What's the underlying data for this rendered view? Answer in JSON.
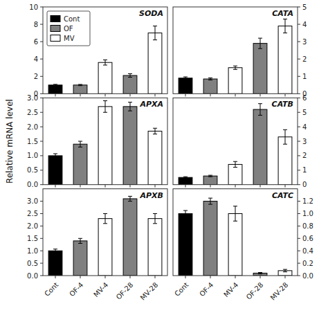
{
  "chart_data": [
    {
      "type": "bar",
      "title": "SODA",
      "y_label": "Relative mRNA level",
      "categories": [
        "Cont",
        "OF-4",
        "MV-4",
        "OF-28",
        "MV-28"
      ],
      "series": [
        {
          "name": "Cont",
          "color": "#000000",
          "values": [
            1.0,
            null,
            null,
            null,
            null
          ],
          "errors": [
            0.08,
            null,
            null,
            null,
            null
          ]
        },
        {
          "name": "OF",
          "color": "#808080",
          "values": [
            null,
            1.0,
            null,
            2.1,
            null
          ],
          "errors": [
            null,
            0.07,
            null,
            0.2,
            null
          ]
        },
        {
          "name": "MV",
          "color": "#ffffff",
          "values": [
            null,
            null,
            3.6,
            null,
            7.0
          ],
          "errors": [
            null,
            null,
            0.3,
            null,
            0.8
          ]
        }
      ],
      "ylim": [
        0,
        10
      ],
      "yticks": [
        0,
        2,
        4,
        6,
        8,
        10
      ],
      "grid": false,
      "legend": "upper left",
      "tick_labels": "y"
    },
    {
      "type": "bar",
      "title": "CATA",
      "categories": [
        "Cont",
        "OF-4",
        "MV-4",
        "OF-28",
        "MV-28"
      ],
      "series": [
        {
          "name": "Cont",
          "color": "#000000",
          "values": [
            0.9,
            null,
            null,
            null,
            null
          ],
          "errors": [
            0.07,
            null,
            null,
            null,
            null
          ]
        },
        {
          "name": "OF",
          "color": "#808080",
          "values": [
            null,
            0.85,
            null,
            2.9,
            null
          ],
          "errors": [
            null,
            0.06,
            null,
            0.3,
            null
          ]
        },
        {
          "name": "MV",
          "color": "#ffffff",
          "values": [
            null,
            null,
            1.5,
            null,
            3.9
          ],
          "errors": [
            null,
            null,
            0.1,
            null,
            0.4
          ]
        }
      ],
      "ylim": [
        0,
        5
      ],
      "yticks": [
        0,
        1,
        2,
        3,
        4,
        5
      ],
      "grid": false,
      "legend": false,
      "tick_labels": "y"
    },
    {
      "type": "bar",
      "title": "APXA",
      "categories": [
        "Cont",
        "OF-4",
        "MV-4",
        "OF-28",
        "MV-28"
      ],
      "series": [
        {
          "name": "Cont",
          "color": "#000000",
          "values": [
            1.0,
            null,
            null,
            null,
            null
          ],
          "errors": [
            0.07,
            null,
            null,
            null,
            null
          ]
        },
        {
          "name": "OF",
          "color": "#808080",
          "values": [
            null,
            1.4,
            null,
            2.7,
            null
          ],
          "errors": [
            null,
            0.1,
            null,
            0.15,
            null
          ]
        },
        {
          "name": "MV",
          "color": "#ffffff",
          "values": [
            null,
            null,
            2.7,
            null,
            1.85
          ],
          "errors": [
            null,
            null,
            0.2,
            null,
            0.1
          ]
        }
      ],
      "ylim": [
        0,
        3.0
      ],
      "yticks": [
        {
          "value": 0,
          "label": "0.0"
        },
        0.5,
        {
          "value": 1,
          "label": "1.0"
        },
        1.5,
        {
          "value": 2,
          "label": "2.0"
        },
        2.5,
        {
          "value": 3,
          "label": "3.0"
        }
      ],
      "grid": false,
      "legend": false,
      "tick_labels": "y"
    },
    {
      "type": "bar",
      "title": "CATB",
      "categories": [
        "Cont",
        "OF-4",
        "MV-4",
        "OF-28",
        "MV-28"
      ],
      "series": [
        {
          "name": "Cont",
          "color": "#000000",
          "values": [
            0.5,
            null,
            null,
            null,
            null
          ],
          "errors": [
            0.05,
            null,
            null,
            null,
            null
          ]
        },
        {
          "name": "OF",
          "color": "#808080",
          "values": [
            null,
            0.6,
            null,
            5.2,
            null
          ],
          "errors": [
            null,
            0.05,
            null,
            0.4,
            null
          ]
        },
        {
          "name": "MV",
          "color": "#ffffff",
          "values": [
            null,
            null,
            1.4,
            null,
            3.3
          ],
          "errors": [
            null,
            null,
            0.2,
            null,
            0.5
          ]
        }
      ],
      "ylim": [
        0,
        6
      ],
      "yticks": [
        0,
        1,
        2,
        3,
        4,
        5,
        6
      ],
      "grid": false,
      "legend": false,
      "tick_labels": "y"
    },
    {
      "type": "bar",
      "title": "APXB",
      "categories": [
        "Cont",
        "OF-4",
        "MV-4",
        "OF-28",
        "MV-28"
      ],
      "series": [
        {
          "name": "Cont",
          "color": "#000000",
          "values": [
            1.0,
            null,
            null,
            null,
            null
          ],
          "errors": [
            0.07,
            null,
            null,
            null,
            null
          ]
        },
        {
          "name": "OF",
          "color": "#808080",
          "values": [
            null,
            1.4,
            null,
            3.1,
            null
          ],
          "errors": [
            null,
            0.1,
            null,
            0.1,
            null
          ]
        },
        {
          "name": "MV",
          "color": "#ffffff",
          "values": [
            null,
            null,
            2.3,
            null,
            2.3
          ],
          "errors": [
            null,
            null,
            0.2,
            null,
            0.2
          ]
        }
      ],
      "ylim": [
        0,
        3.5
      ],
      "yticks": [
        {
          "value": 0,
          "label": "0.0"
        },
        0.5,
        {
          "value": 1,
          "label": "1.0"
        },
        1.5,
        {
          "value": 2,
          "label": "2.0"
        },
        2.5,
        {
          "value": 3,
          "label": "3.0"
        }
      ],
      "grid": false,
      "legend": false
    },
    {
      "type": "bar",
      "title": "CATC",
      "categories": [
        "Cont",
        "OF-4",
        "MV-4",
        "OF-28",
        "MV-28"
      ],
      "series": [
        {
          "name": "Cont",
          "color": "#000000",
          "values": [
            1.0,
            null,
            null,
            null,
            null
          ],
          "errors": [
            0.05,
            null,
            null,
            null,
            null
          ]
        },
        {
          "name": "OF",
          "color": "#808080",
          "values": [
            null,
            1.2,
            null,
            0.04,
            null
          ],
          "errors": [
            null,
            0.05,
            null,
            0.01,
            null
          ]
        },
        {
          "name": "MV",
          "color": "#ffffff",
          "values": [
            null,
            null,
            1.0,
            null,
            0.08
          ],
          "errors": [
            null,
            null,
            0.12,
            null,
            0.02
          ]
        }
      ],
      "ylim": [
        0,
        1.4
      ],
      "yticks": [
        {
          "value": 0,
          "label": "0.0"
        },
        0.2,
        0.4,
        0.6,
        0.8,
        {
          "value": 1,
          "label": "1.0"
        },
        1.2
      ],
      "grid": false,
      "legend": false
    }
  ]
}
